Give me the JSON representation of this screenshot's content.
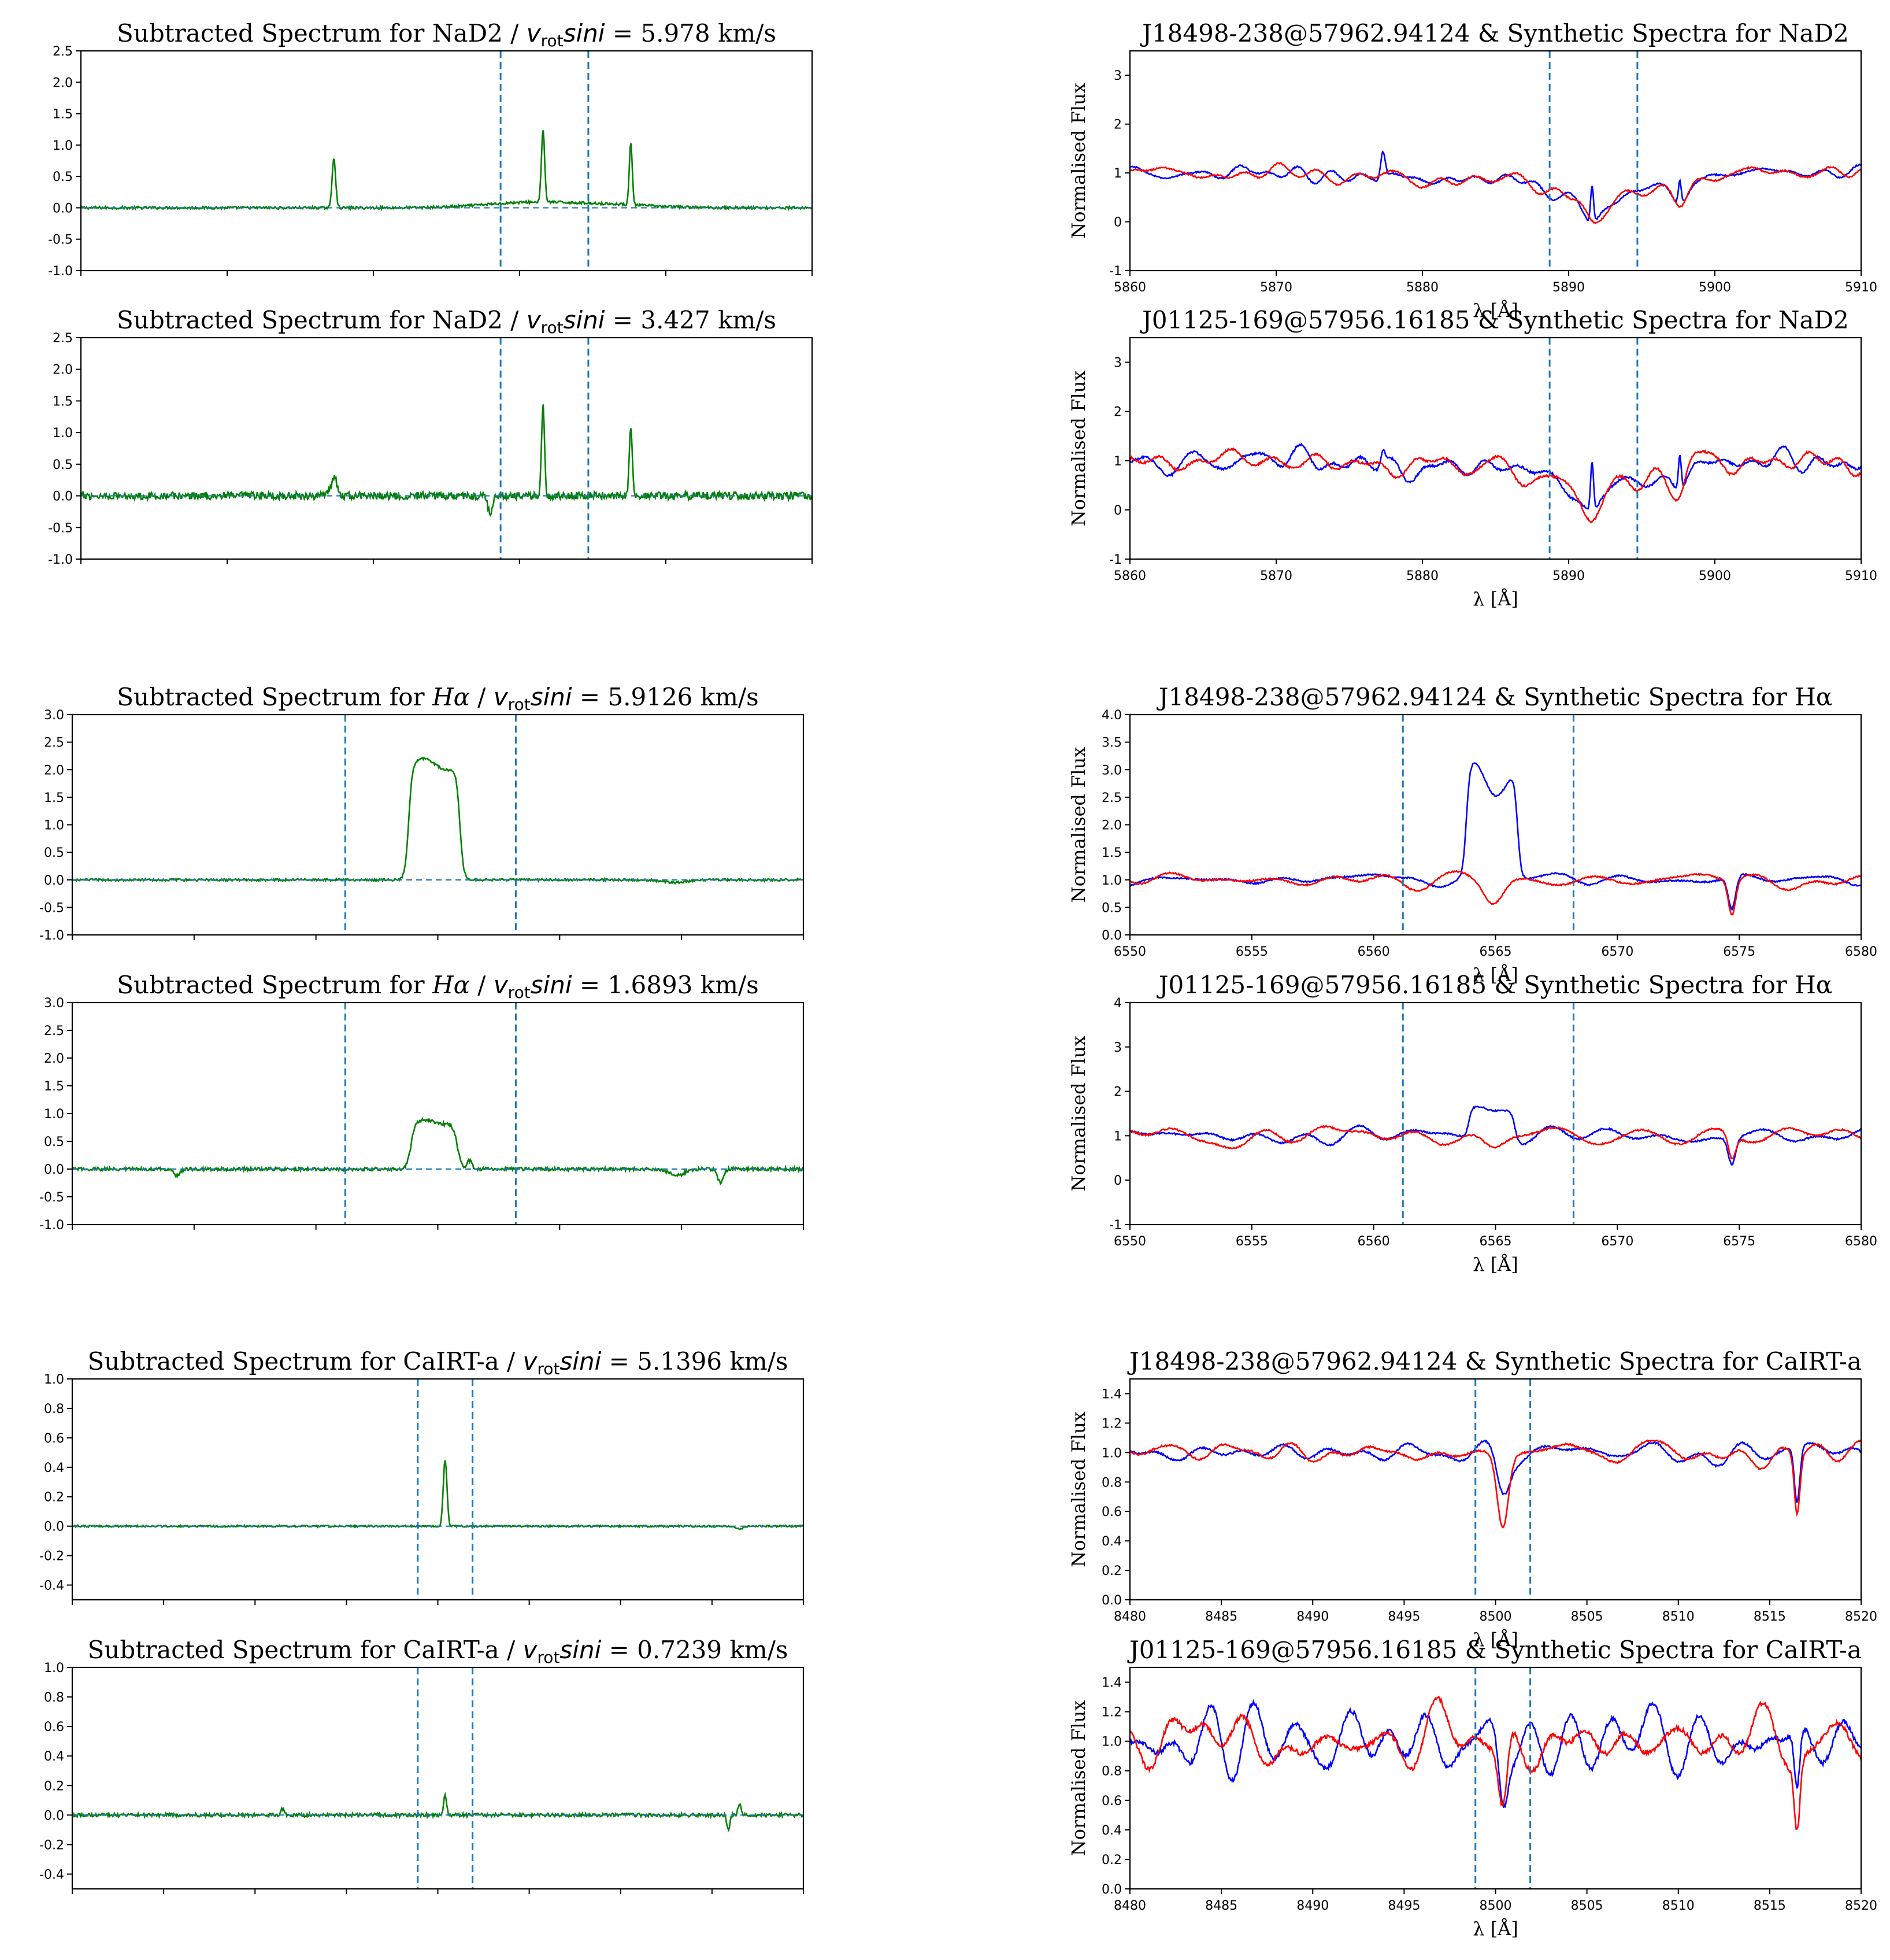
{
  "chart_data": [
    {
      "id": "nad2-sub-left",
      "type": "line",
      "title": "Subtracted Spectrum for NaD2 / v_rot sini = 5.978 km/s",
      "title_parts": {
        "prefix": "Subtracted Spectrum for NaD2 / ",
        "v": "v",
        "sub": "rot",
        "sini": "sini",
        "suffix": " = 5.978 km/s"
      },
      "xlabel": "",
      "ylabel": "",
      "xlim": [
        5860,
        5910
      ],
      "ylim": [
        -1.0,
        2.5
      ],
      "yticks": [
        "-1.0",
        "-0.5",
        "0.0",
        "0.5",
        "1.0",
        "1.5",
        "2.0",
        "2.5"
      ],
      "xticks": [],
      "vlines": [
        5888.7,
        5894.7
      ],
      "zero_line": true,
      "series": [
        {
          "color": "#008000",
          "kind": "diff",
          "noise": 0.02,
          "baseline": 0.0,
          "peaks": [
            [
              5877.3,
              0.8,
              0.12
            ],
            [
              5891.6,
              1.15,
              0.11
            ],
            [
              5897.6,
              1.0,
              0.1
            ],
            [
              5890.5,
              0.08,
              3.0
            ],
            [
              5896.0,
              0.05,
              3.0
            ]
          ]
        }
      ]
    },
    {
      "id": "nad2-obs-left",
      "type": "line",
      "title": "J18498-238@57962.94124  &  Synthetic Spectra for NaD2",
      "xlabel": "λ  [Å]",
      "ylabel": "Normalised Flux",
      "xlim": [
        5860,
        5910
      ],
      "ylim": [
        -1,
        3.5
      ],
      "yticks": [
        "-1",
        "0",
        "1",
        "2",
        "3"
      ],
      "xticks": [
        "5860",
        "5870",
        "5880",
        "5890",
        "5900",
        "5910"
      ],
      "vlines": [
        5888.7,
        5894.7
      ],
      "series": [
        {
          "color": "#0000ff",
          "kind": "spec",
          "noise": 0.1,
          "dips": [
            [
              5891.6,
              0.45,
              0.55
            ],
            [
              5897.6,
              0.4,
              0.5
            ]
          ],
          "bands": [
            [
              5892,
              0.55,
              3.5
            ],
            [
              5880,
              0.1,
              6
            ]
          ],
          "peaks": [
            [
              5877.3,
              0.55,
              0.15
            ],
            [
              5891.6,
              0.75,
              0.1
            ],
            [
              5897.6,
              0.5,
              0.1
            ]
          ]
        },
        {
          "color": "#ff0000",
          "kind": "spec",
          "noise": 0.1,
          "dips": [
            [
              5891.6,
              0.5,
              0.55
            ],
            [
              5897.6,
              0.45,
              0.5
            ]
          ],
          "bands": [
            [
              5892,
              0.55,
              3.5
            ],
            [
              5880,
              0.1,
              6
            ]
          ],
          "peaks": []
        }
      ]
    },
    {
      "id": "nad2-sub-right",
      "type": "line",
      "title": "Subtracted Spectrum for NaD2 / v_rot sini = 3.427 km/s",
      "title_parts": {
        "prefix": "Subtracted Spectrum for NaD2 / ",
        "v": "v",
        "sub": "rot",
        "sini": "sini",
        "suffix": " = 3.427 km/s"
      },
      "xlabel": "",
      "ylabel": "",
      "xlim": [
        5860,
        5910
      ],
      "ylim": [
        -1.0,
        2.5
      ],
      "yticks": [
        "-1.0",
        "-0.5",
        "0.0",
        "0.5",
        "1.0",
        "1.5",
        "2.0",
        "2.5"
      ],
      "xticks": [],
      "vlines": [
        5888.7,
        5894.7
      ],
      "zero_line": true,
      "series": [
        {
          "color": "#008000",
          "kind": "diff",
          "noise": 0.06,
          "baseline": 0.0,
          "peaks": [
            [
              5877.3,
              0.3,
              0.2
            ],
            [
              5891.6,
              1.4,
              0.1
            ],
            [
              5897.6,
              1.05,
              0.1
            ],
            [
              5888.0,
              -0.3,
              0.15
            ]
          ]
        }
      ]
    },
    {
      "id": "nad2-obs-right",
      "type": "line",
      "title": "J01125-169@57956.16185  &  Synthetic Spectra for NaD2",
      "xlabel": "λ  [Å]",
      "ylabel": "Normalised Flux",
      "xlim": [
        5860,
        5910
      ],
      "ylim": [
        -1,
        3.5
      ],
      "yticks": [
        "-1",
        "0",
        "1",
        "2",
        "3"
      ],
      "xticks": [
        "5860",
        "5870",
        "5880",
        "5890",
        "5900",
        "5910"
      ],
      "vlines": [
        5888.7,
        5894.7
      ],
      "series": [
        {
          "color": "#0000ff",
          "kind": "spec",
          "noise": 0.15,
          "dips": [
            [
              5891.6,
              0.45,
              0.55
            ],
            [
              5897.6,
              0.4,
              0.5
            ]
          ],
          "bands": [
            [
              5892,
              0.55,
              3.5
            ],
            [
              5882,
              0.1,
              6
            ]
          ],
          "peaks": [
            [
              5891.6,
              1.0,
              0.1
            ],
            [
              5897.6,
              0.7,
              0.1
            ],
            [
              5877.3,
              0.3,
              0.15
            ]
          ]
        },
        {
          "color": "#ff0000",
          "kind": "spec",
          "noise": 0.15,
          "dips": [
            [
              5891.6,
              0.5,
              0.55
            ],
            [
              5897.6,
              0.45,
              0.5
            ]
          ],
          "bands": [
            [
              5892,
              0.55,
              3.5
            ],
            [
              5882,
              0.1,
              6
            ]
          ],
          "peaks": []
        }
      ]
    },
    {
      "id": "ha-sub-left",
      "type": "line",
      "title": "Subtracted Spectrum for Hα / v_rot sini =  5.9126 km/s",
      "title_parts": {
        "prefix": "Subtracted Spectrum for ",
        "ha": "Hα",
        "mid": " / ",
        "v": "v",
        "sub": "rot",
        "sini": "sini",
        "suffix": " =  5.9126 km/s"
      },
      "xlabel": "",
      "ylabel": "",
      "xlim": [
        6550,
        6580
      ],
      "ylim": [
        -1.0,
        3.0
      ],
      "yticks": [
        "-1.0",
        "-0.5",
        "0.0",
        "0.5",
        "1.0",
        "1.5",
        "2.0",
        "2.5",
        "3.0"
      ],
      "xticks": [],
      "vlines": [
        6561.2,
        6568.2
      ],
      "zero_line": true,
      "series": [
        {
          "color": "#008000",
          "kind": "diff",
          "noise": 0.02,
          "baseline": 0.0,
          "box": [
            6563.8,
            6565.9,
            2.1,
            0.3
          ],
          "peaks": [
            [
              6574.7,
              -0.05,
              0.5
            ]
          ]
        }
      ]
    },
    {
      "id": "ha-obs-left",
      "type": "line",
      "title": "J18498-238@57962.94124  &  Synthetic Spectra for Hα",
      "xlabel": "λ  [Å]",
      "ylabel": "Normalised Flux",
      "xlim": [
        6550,
        6580
      ],
      "ylim": [
        0.0,
        4.0
      ],
      "yticks": [
        "0.0",
        "0.5",
        "1.0",
        "1.5",
        "2.0",
        "2.5",
        "3.0",
        "3.5",
        "4.0"
      ],
      "xticks": [
        "6550",
        "6555",
        "6560",
        "6565",
        "6570",
        "6575",
        "6580"
      ],
      "vlines": [
        6561.2,
        6568.2
      ],
      "series": [
        {
          "color": "#0000ff",
          "kind": "spec",
          "noise": 0.09,
          "dips": [
            [
              6564.9,
              0.4,
              0.4
            ],
            [
              6574.7,
              0.6,
              0.15
            ]
          ],
          "bands": [],
          "box": [
            6563.8,
            6565.9,
            2.1,
            0.3
          ],
          "peaks": []
        },
        {
          "color": "#ff0000",
          "kind": "spec",
          "noise": 0.09,
          "dips": [
            [
              6564.9,
              0.45,
              0.4
            ],
            [
              6574.7,
              0.65,
              0.15
            ]
          ],
          "bands": [],
          "peaks": []
        }
      ]
    },
    {
      "id": "ha-sub-right",
      "type": "line",
      "title": "Subtracted Spectrum for Hα / v_rot sini =  1.6893 km/s",
      "title_parts": {
        "prefix": "Subtracted Spectrum for ",
        "ha": "Hα",
        "mid": " / ",
        "v": "v",
        "sub": "rot",
        "sini": "sini",
        "suffix": " =  1.6893 km/s"
      },
      "xlabel": "",
      "ylabel": "",
      "xlim": [
        6550,
        6580
      ],
      "ylim": [
        -1.0,
        3.0
      ],
      "yticks": [
        "-1.0",
        "-0.5",
        "0.0",
        "0.5",
        "1.0",
        "1.5",
        "2.0",
        "2.5",
        "3.0"
      ],
      "xticks": [],
      "vlines": [
        6561.2,
        6568.2
      ],
      "zero_line": true,
      "series": [
        {
          "color": "#008000",
          "kind": "diff",
          "noise": 0.03,
          "baseline": 0.0,
          "box": [
            6563.9,
            6565.8,
            0.85,
            0.35
          ],
          "peaks": [
            [
              6566.3,
              0.15,
              0.1
            ],
            [
              6576.6,
              -0.25,
              0.12
            ],
            [
              6574.8,
              -0.12,
              0.3
            ],
            [
              6554.3,
              -0.12,
              0.12
            ]
          ]
        }
      ]
    },
    {
      "id": "ha-obs-right",
      "type": "line",
      "title": "J01125-169@57956.16185  &  Synthetic Spectra for Hα",
      "xlabel": "λ  [Å]",
      "ylabel": "Normalised Flux",
      "xlim": [
        6550,
        6580
      ],
      "ylim": [
        -1,
        4
      ],
      "yticks": [
        "-1",
        "0",
        "1",
        "2",
        "3",
        "4"
      ],
      "xticks": [
        "6550",
        "6555",
        "6560",
        "6565",
        "6570",
        "6575",
        "6580"
      ],
      "vlines": [
        6561.2,
        6568.2
      ],
      "series": [
        {
          "color": "#0000ff",
          "kind": "spec",
          "noise": 0.12,
          "dips": [
            [
              6564.9,
              0.2,
              0.4
            ],
            [
              6574.7,
              0.6,
              0.15
            ]
          ],
          "bands": [],
          "box": [
            6563.9,
            6565.8,
            0.75,
            0.3
          ],
          "peaks": []
        },
        {
          "color": "#ff0000",
          "kind": "spec",
          "noise": 0.12,
          "dips": [
            [
              6564.9,
              0.25,
              0.4
            ],
            [
              6574.7,
              0.55,
              0.15
            ]
          ],
          "bands": [],
          "peaks": []
        }
      ]
    },
    {
      "id": "ca-sub-left",
      "type": "line",
      "title": "Subtracted Spectrum for CaIRT-a / v_rot sini =  5.1396 km/s",
      "title_parts": {
        "prefix": "Subtracted Spectrum for CaIRT-a / ",
        "v": "v",
        "sub": "rot",
        "sini": "sini",
        "suffix": " =  5.1396 km/s"
      },
      "xlabel": "",
      "ylabel": "",
      "xlim": [
        8480,
        8520
      ],
      "ylim": [
        -0.5,
        1.0
      ],
      "yticks": [
        "-0.4",
        "-0.2",
        "0.0",
        "0.2",
        "0.4",
        "0.6",
        "0.8",
        "1.0"
      ],
      "ytick_values": [
        -0.4,
        -0.2,
        0.0,
        0.2,
        0.4,
        0.6,
        0.8,
        1.0
      ],
      "xticks": [],
      "vlines": [
        8498.9,
        8501.9
      ],
      "zero_line": true,
      "series": [
        {
          "color": "#008000",
          "kind": "diff",
          "noise": 0.006,
          "baseline": 0.0,
          "peaks": [
            [
              8500.4,
              0.45,
              0.1
            ],
            [
              8516.5,
              -0.02,
              0.2
            ]
          ]
        }
      ]
    },
    {
      "id": "ca-obs-left",
      "type": "line",
      "title": "J18498-238@57962.94124  &  Synthetic Spectra for CaIRT-a",
      "xlabel": "λ  [Å]",
      "ylabel": "Normalised Flux",
      "xlim": [
        8480,
        8520
      ],
      "ylim": [
        0.0,
        1.5
      ],
      "yticks": [
        "0.0",
        "0.2",
        "0.4",
        "0.6",
        "0.8",
        "1.0",
        "1.2",
        "1.4"
      ],
      "ytick_values": [
        0.0,
        0.2,
        0.4,
        0.6,
        0.8,
        1.0,
        1.2,
        1.4
      ],
      "xticks": [
        "8480",
        "8485",
        "8490",
        "8495",
        "8500",
        "8505",
        "8510",
        "8515",
        "8520"
      ],
      "vlines": [
        8498.9,
        8501.9
      ],
      "series": [
        {
          "color": "#0000ff",
          "kind": "spec",
          "noise": 0.04,
          "dips": [
            [
              8500.4,
              0.25,
              0.35
            ],
            [
              8516.5,
              0.38,
              0.15
            ]
          ],
          "bands": [],
          "peaks": []
        },
        {
          "color": "#ff0000",
          "kind": "spec",
          "noise": 0.04,
          "dips": [
            [
              8500.4,
              0.5,
              0.3
            ],
            [
              8516.5,
              0.4,
              0.15
            ]
          ],
          "bands": [],
          "peaks": []
        }
      ]
    },
    {
      "id": "ca-sub-right",
      "type": "line",
      "title": "Subtracted Spectrum for CaIRT-a / v_rot sini =  0.7239 km/s",
      "title_parts": {
        "prefix": "Subtracted Spectrum for CaIRT-a / ",
        "v": "v",
        "sub": "rot",
        "sini": "sini",
        "suffix": " =  0.7239 km/s"
      },
      "xlabel": "",
      "ylabel": "",
      "xlim": [
        8480,
        8520
      ],
      "ylim": [
        -0.5,
        1.0
      ],
      "yticks": [
        "-0.4",
        "-0.2",
        "0.0",
        "0.2",
        "0.4",
        "0.6",
        "0.8",
        "1.0"
      ],
      "ytick_values": [
        -0.4,
        -0.2,
        0.0,
        0.2,
        0.4,
        0.6,
        0.8,
        1.0
      ],
      "xticks": [],
      "vlines": [
        8498.9,
        8501.9
      ],
      "zero_line": true,
      "series": [
        {
          "color": "#008000",
          "kind": "diff",
          "noise": 0.012,
          "baseline": 0.0,
          "peaks": [
            [
              8500.4,
              0.13,
              0.08
            ],
            [
              8516.5,
              0.08,
              0.08
            ],
            [
              8515.9,
              -0.1,
              0.08
            ],
            [
              8491.5,
              0.04,
              0.1
            ]
          ]
        }
      ]
    },
    {
      "id": "ca-obs-right",
      "type": "line",
      "title": "J01125-169@57956.16185  &  Synthetic Spectra for CaIRT-a",
      "xlabel": "λ  [Å]",
      "ylabel": "Normalised Flux",
      "xlim": [
        8480,
        8520
      ],
      "ylim": [
        0.0,
        1.5
      ],
      "yticks": [
        "0.0",
        "0.2",
        "0.4",
        "0.6",
        "0.8",
        "1.0",
        "1.2",
        "1.4"
      ],
      "ytick_values": [
        0.0,
        0.2,
        0.4,
        0.6,
        0.8,
        1.0,
        1.2,
        1.4
      ],
      "xticks": [
        "8480",
        "8485",
        "8490",
        "8495",
        "8500",
        "8505",
        "8510",
        "8515",
        "8520"
      ],
      "vlines": [
        8498.9,
        8501.9
      ],
      "series": [
        {
          "color": "#0000ff",
          "kind": "spec",
          "noise": 0.1,
          "dips": [
            [
              8500.4,
              0.4,
              0.25
            ],
            [
              8516.5,
              0.4,
              0.15
            ]
          ],
          "bands": [],
          "peaks": []
        },
        {
          "color": "#ff0000",
          "kind": "spec",
          "noise": 0.1,
          "dips": [
            [
              8500.4,
              0.5,
              0.25
            ],
            [
              8516.5,
              0.45,
              0.15
            ]
          ],
          "bands": [],
          "peaks": []
        }
      ]
    }
  ],
  "colors": {
    "obs": "#0000ff",
    "synthetic": "#ff0000",
    "subtracted": "#008000",
    "guide": "#1f77b4"
  }
}
